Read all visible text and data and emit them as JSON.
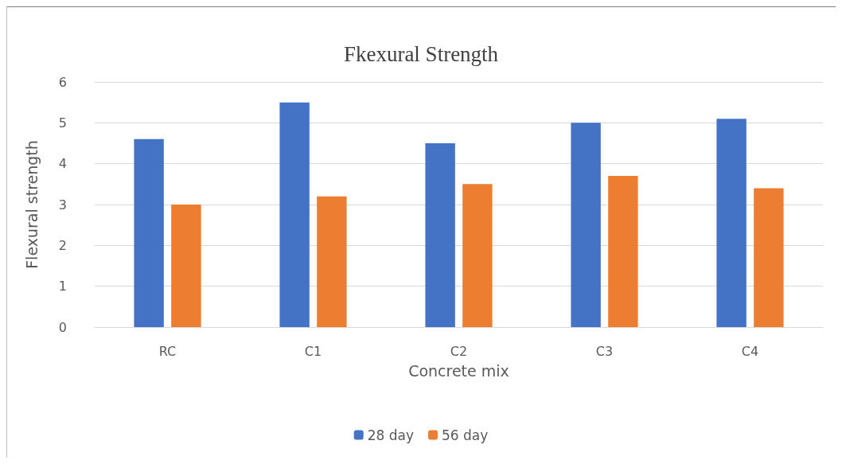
{
  "chart_data": {
    "type": "bar",
    "title": "Fkexural Strength",
    "xlabel": "Concrete mix",
    "ylabel": "Flexural strength",
    "categories": [
      "RC",
      "C1",
      "C2",
      "C3",
      "C4"
    ],
    "series": [
      {
        "name": "28 day",
        "color": "#4472c4",
        "values": [
          4.6,
          5.5,
          4.5,
          5.0,
          5.1
        ]
      },
      {
        "name": "56 day",
        "color": "#ed7d31",
        "values": [
          3.0,
          3.2,
          3.5,
          3.7,
          3.4
        ]
      }
    ],
    "ylim": [
      0,
      6
    ],
    "yticks": [
      0,
      1,
      2,
      3,
      4,
      5,
      6
    ],
    "grid": "y",
    "legend": "bottom"
  }
}
